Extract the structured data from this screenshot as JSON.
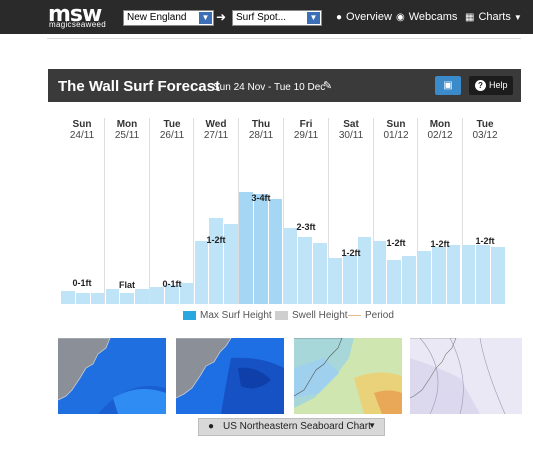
{
  "header": {
    "logo_text": "msw",
    "logo_sub": "magicseaweed",
    "region_select": "New England",
    "spot_select": "Surf Spot...",
    "nav": [
      {
        "label": "Overview",
        "icon": "map-pin-icon"
      },
      {
        "label": "Webcams",
        "icon": "webcam-icon"
      },
      {
        "label": "Charts",
        "icon": "grid-icon"
      }
    ]
  },
  "forecast": {
    "title": "The Wall Surf Forecast",
    "date_range": "Sun 24 Nov - Tue 10 Dec",
    "help_label": "Help",
    "days": [
      {
        "name": "Sun",
        "date": "24/11"
      },
      {
        "name": "Mon",
        "date": "25/11"
      },
      {
        "name": "Tue",
        "date": "26/11"
      },
      {
        "name": "Wed",
        "date": "27/11"
      },
      {
        "name": "Thu",
        "date": "28/11"
      },
      {
        "name": "Fri",
        "date": "29/11"
      },
      {
        "name": "Sat",
        "date": "30/11"
      },
      {
        "name": "Sun",
        "date": "01/12"
      },
      {
        "name": "Mon",
        "date": "02/12"
      },
      {
        "name": "Tue",
        "date": "03/12"
      }
    ],
    "height_labels": [
      "0-1ft",
      "Flat",
      "0-1ft",
      "1-2ft",
      "3-4ft",
      "2-3ft",
      "1-2ft",
      "1-2ft",
      "1-2ft",
      "1-2ft"
    ],
    "bar_levels": [
      0.07,
      0.06,
      0.06,
      0.08,
      0.06,
      0.08,
      0.09,
      0.1,
      0.11,
      0.33,
      0.45,
      0.42,
      0.59,
      0.58,
      0.55,
      0.4,
      0.35,
      0.32,
      0.24,
      0.26,
      0.35,
      0.33,
      0.23,
      0.25,
      0.28,
      0.3,
      0.31,
      0.31,
      0.31,
      0.3
    ],
    "legend": {
      "max": "Max Surf Height",
      "swell": "Swell Height",
      "period": "Period"
    },
    "chart_selector": "US Northeastern Seaboard Chart"
  },
  "colors": {
    "bar": "#bfe3f7",
    "peak_bar": "#a5d6f3",
    "header_bg": "#3a3a3a",
    "accent_blue": "#3b8ac9"
  }
}
